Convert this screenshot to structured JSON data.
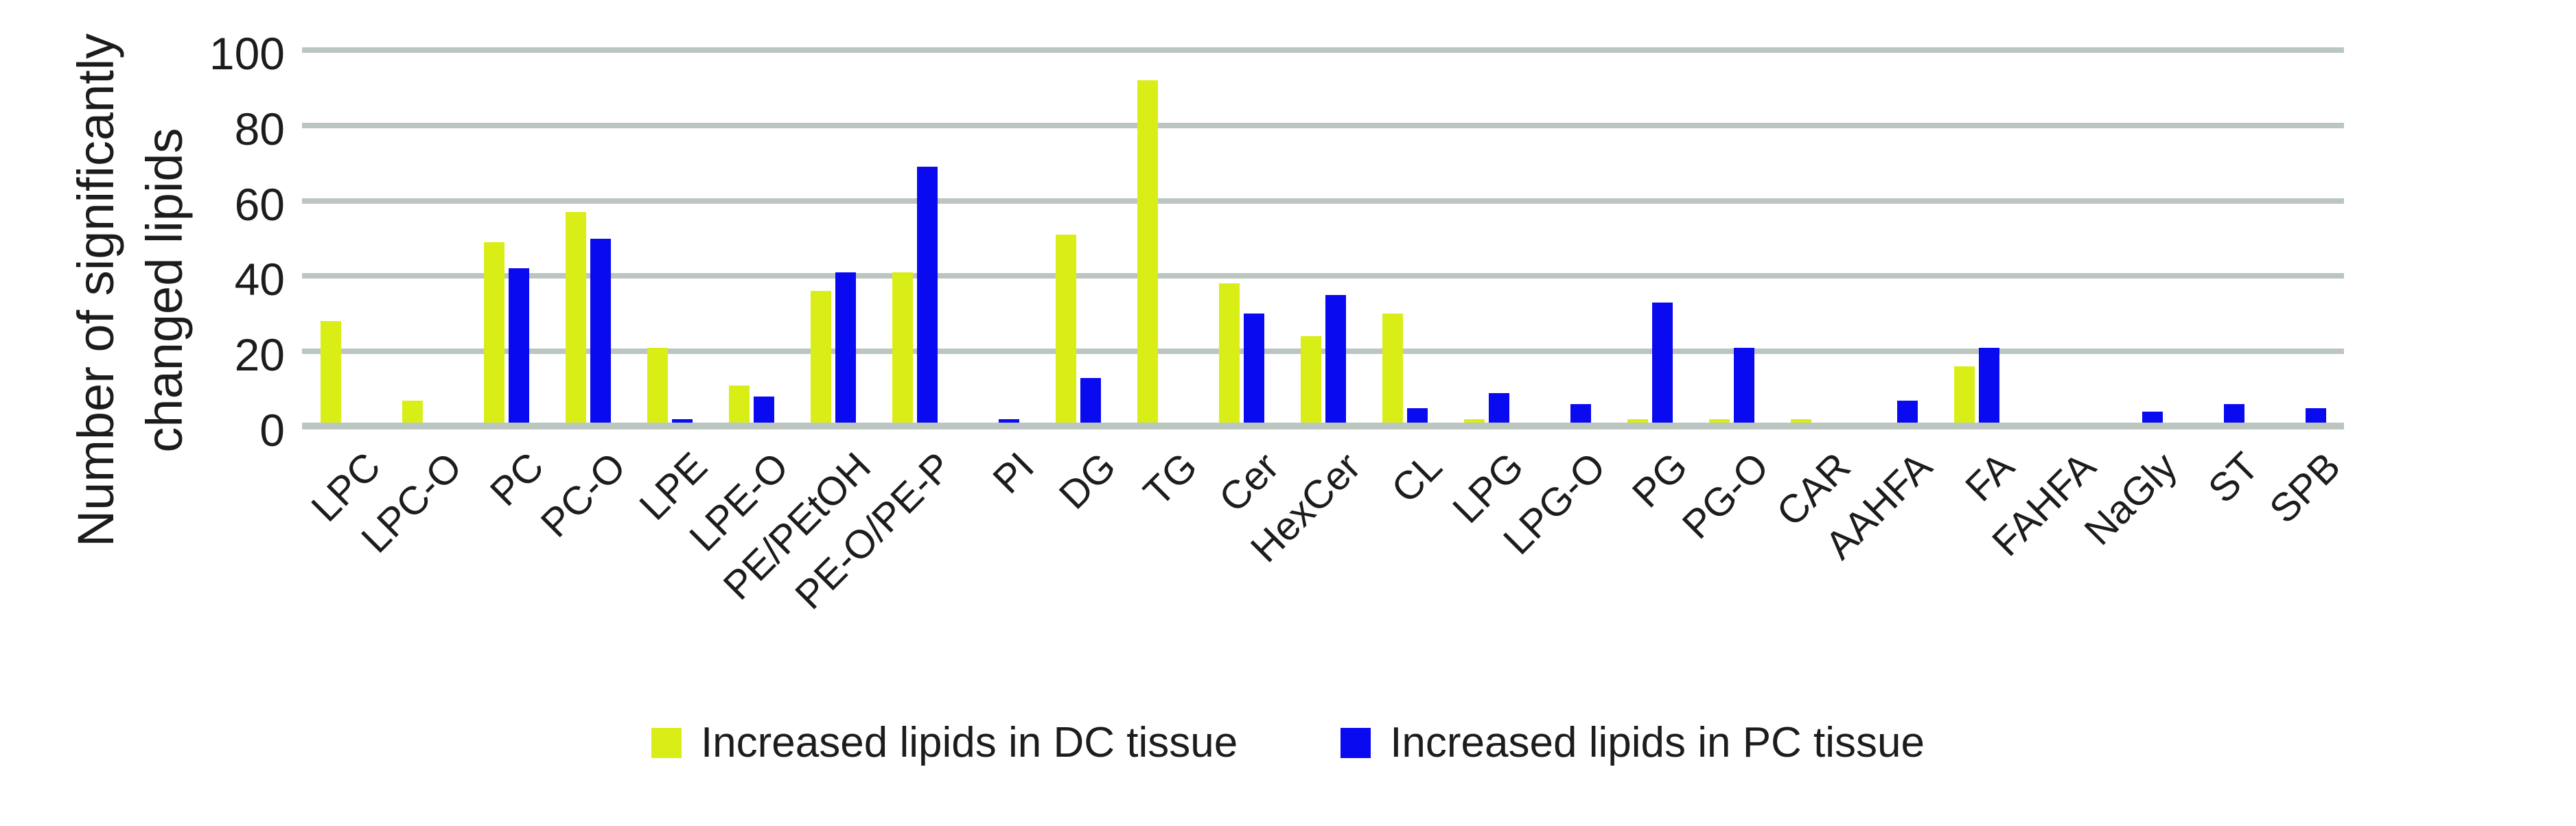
{
  "chart_data": {
    "type": "bar",
    "title": "",
    "ylabel_lines": [
      "Number of significantly",
      "changed lipids"
    ],
    "xlabel": "",
    "categories": [
      "LPC",
      "LPC-O",
      "PC",
      "PC-O",
      "LPE",
      "LPE-O",
      "PE/PEtOH",
      "PE-O/PE-P",
      "PI",
      "DG",
      "TG",
      "Cer",
      "HexCer",
      "CL",
      "LPG",
      "LPG-O",
      "PG",
      "PG-O",
      "CAR",
      "AAHFA",
      "FA",
      "FAHFA",
      "NaGly",
      "ST",
      "SPB"
    ],
    "series": [
      {
        "name": "Increased lipids in DC tissue",
        "color": "#d9ee16",
        "values": [
          28,
          7,
          49,
          57,
          21,
          11,
          36,
          41,
          1,
          51,
          92,
          38,
          24,
          30,
          2,
          0,
          2,
          2,
          2,
          0,
          16,
          0,
          1,
          0,
          0
        ]
      },
      {
        "name": "Increased lipids in PC tissue",
        "color": "#0a0af0",
        "values": [
          0,
          1,
          42,
          50,
          2,
          8,
          41,
          69,
          2,
          13,
          0,
          30,
          35,
          5,
          9,
          6,
          33,
          21,
          0,
          7,
          21,
          1,
          4,
          6,
          5
        ]
      }
    ],
    "y_ticks": [
      0,
      20,
      40,
      60,
      80,
      100
    ],
    "ylim": [
      0,
      100
    ],
    "grid": true,
    "legend_position": "bottom"
  },
  "colors": {
    "gridline": "#bcc6c1",
    "axis_text": "#1c1c1c",
    "background": "#ffffff"
  }
}
